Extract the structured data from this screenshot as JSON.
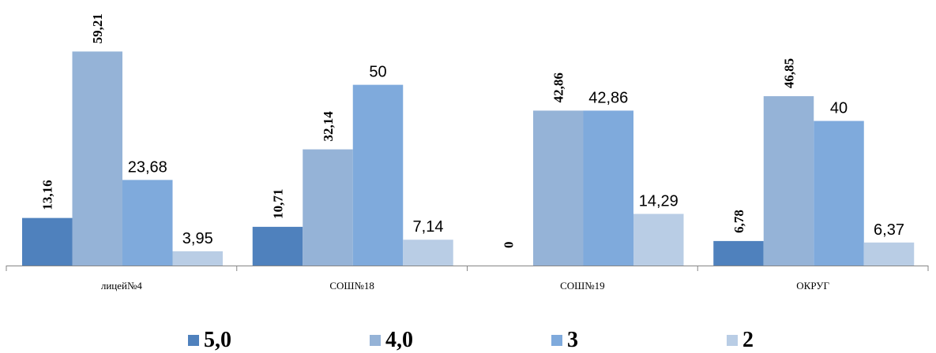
{
  "chart_data": {
    "type": "bar",
    "categories": [
      "лицей№4",
      "СОШ№18",
      "СОШ№19",
      "ОКРУГ"
    ],
    "series": [
      {
        "name": "5,0",
        "color": "#4f81bd",
        "values": [
          13.16,
          10.71,
          0,
          6.78
        ],
        "labels": [
          "13,16",
          "10,71",
          "0",
          "6,78"
        ]
      },
      {
        "name": "4,0",
        "color": "#95b3d7",
        "values": [
          59.21,
          32.14,
          42.86,
          46.85
        ],
        "labels": [
          "59,21",
          "32,14",
          "42,86",
          "46,85"
        ]
      },
      {
        "name": "3",
        "color": "#7faadc",
        "values": [
          23.68,
          50,
          42.86,
          40
        ],
        "labels": [
          "23,68",
          "50",
          "42,86",
          "40"
        ]
      },
      {
        "name": "2",
        "color": "#b9cde5",
        "values": [
          3.95,
          7.14,
          14.29,
          6.37
        ],
        "labels": [
          "3,95",
          "7,14",
          "14,29",
          "6,37"
        ]
      }
    ],
    "label_styles": [
      "serif-rotated",
      "serif-rotated",
      "sans",
      "sans"
    ],
    "ylim": [
      0,
      65
    ],
    "grid": false,
    "legend_position": "bottom"
  }
}
